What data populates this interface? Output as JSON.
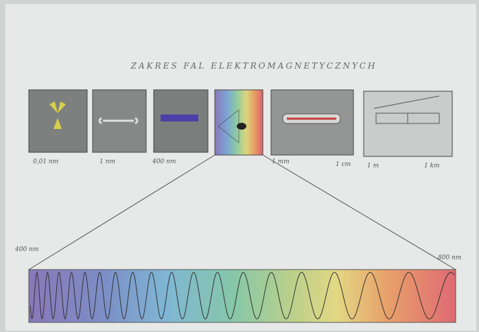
{
  "title": "ZAKRES FAL ELEKTROMAGNETYCZNYCH",
  "scale_labels": [
    "0,01 nm",
    "1 nm",
    "400 nm",
    "1 mm",
    "1 cm",
    "1 m",
    "1 km"
  ],
  "visible_range": {
    "start": "400 nm",
    "end": "800 nm"
  }
}
